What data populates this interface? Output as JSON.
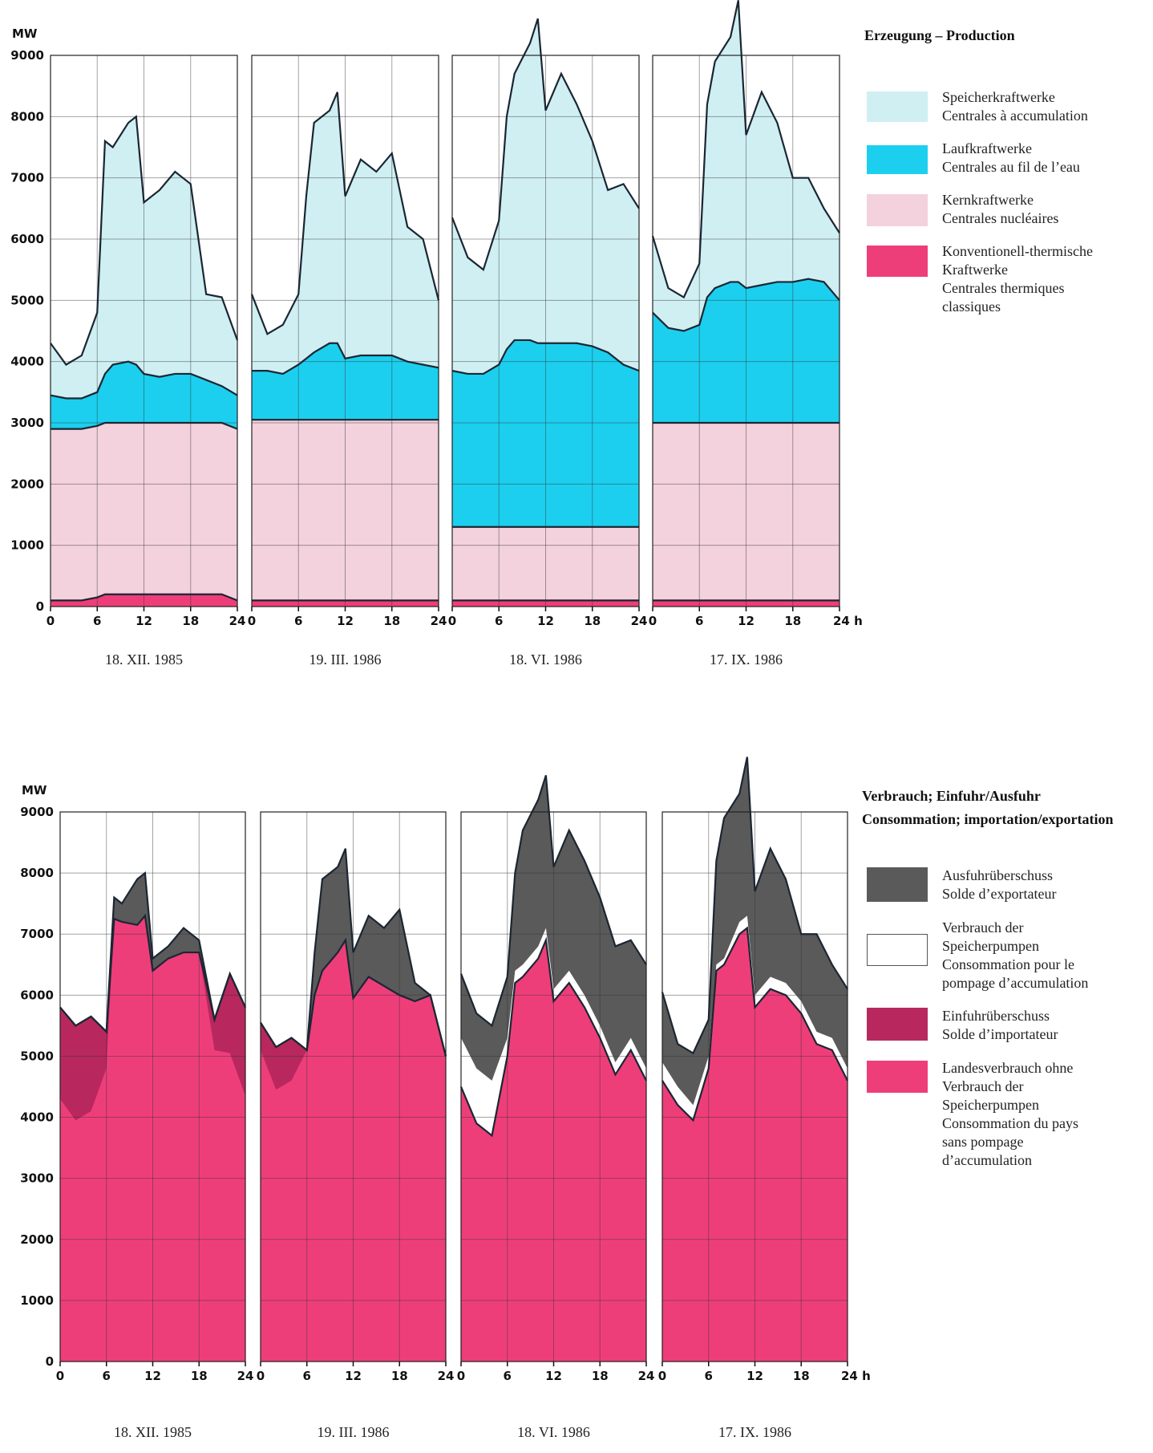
{
  "chart_data": [
    {
      "type": "stacked-area",
      "title": "Erzeugung – Production",
      "y_label": "MW",
      "ylim": [
        0,
        9000
      ],
      "yticks": [
        0,
        1000,
        2000,
        3000,
        4000,
        5000,
        6000,
        7000,
        8000,
        9000
      ],
      "xlim": [
        0,
        24
      ],
      "x": [
        0,
        2,
        4,
        6,
        7,
        8,
        10,
        11,
        12,
        14,
        16,
        18,
        20,
        22,
        24
      ],
      "xticks": [
        [
          0,
          6,
          12,
          18,
          24
        ],
        [
          0,
          6,
          12,
          18,
          24
        ],
        [
          0,
          6,
          12,
          18,
          24
        ],
        [
          0,
          6,
          12,
          18,
          {
            "value": 24,
            "label": "24 h"
          }
        ]
      ],
      "panels": [
        "18. XII. 1985",
        "19. III. 1986",
        "18. VI. 1986",
        "17. IX. 1986"
      ],
      "grid": true,
      "series": [
        {
          "name": "Speicherkraftwerke\nCentrales à accumulation",
          "color": "#cfeff3",
          "values": [
            [
              850,
              550,
              700,
              1300,
              3800,
              3550,
              3900,
              4050,
              2800,
              3050,
              3300,
              3100,
              1400,
              1450,
              900
            ],
            [
              1250,
              600,
              800,
              1150,
              2650,
              3750,
              3800,
              4100,
              2650,
              3200,
              3000,
              3300,
              2200,
              2050,
              1100
            ],
            [
              2500,
              1900,
              1700,
              2350,
              3800,
              4350,
              4850,
              5300,
              3800,
              4400,
              3900,
              3350,
              2650,
              2950,
              2650
            ],
            [
              1250,
              650,
              550,
              1000,
              3150,
              3700,
              4000,
              4600,
              2500,
              3150,
              2600,
              1700,
              1650,
              1200,
              1100
            ]
          ]
        },
        {
          "name": "Laufkraftwerke\nCentrales au fil de l’eau",
          "color": "#1ccfee",
          "values": [
            [
              550,
              500,
              500,
              550,
              800,
              950,
              1000,
              950,
              800,
              750,
              800,
              800,
              700,
              600,
              550
            ],
            [
              800,
              800,
              750,
              900,
              1000,
              1100,
              1250,
              1250,
              1000,
              1050,
              1050,
              1050,
              950,
              900,
              850
            ],
            [
              2550,
              2500,
              2500,
              2650,
              2900,
              3050,
              3050,
              3000,
              3000,
              3000,
              3000,
              2950,
              2850,
              2650,
              2550
            ],
            [
              1800,
              1550,
              1500,
              1600,
              2050,
              2200,
              2300,
              2300,
              2200,
              2250,
              2300,
              2300,
              2350,
              2300,
              2000
            ]
          ]
        },
        {
          "name": "Kernkraftwerke\nCentrales nucléaires",
          "color": "#f3d1dd",
          "values": [
            [
              2800,
              2800,
              2800,
              2800,
              2800,
              2800,
              2800,
              2800,
              2800,
              2800,
              2800,
              2800,
              2800,
              2800,
              2800
            ],
            [
              2950,
              2950,
              2950,
              2950,
              2950,
              2950,
              2950,
              2950,
              2950,
              2950,
              2950,
              2950,
              2950,
              2950,
              2950
            ],
            [
              1200,
              1200,
              1200,
              1200,
              1200,
              1200,
              1200,
              1200,
              1200,
              1200,
              1200,
              1200,
              1200,
              1200,
              1200
            ],
            [
              2900,
              2900,
              2900,
              2900,
              2900,
              2900,
              2900,
              2900,
              2900,
              2900,
              2900,
              2900,
              2900,
              2900,
              2900
            ]
          ]
        },
        {
          "name": "Konventionell-thermische\nKraftwerke\nCentrales thermiques\nclassiques",
          "color": "#ee3e7a",
          "values": [
            [
              100,
              100,
              100,
              150,
              200,
              200,
              200,
              200,
              200,
              200,
              200,
              200,
              200,
              200,
              100
            ],
            [
              100,
              100,
              100,
              100,
              100,
              100,
              100,
              100,
              100,
              100,
              100,
              100,
              100,
              100,
              100
            ],
            [
              100,
              100,
              100,
              100,
              100,
              100,
              100,
              100,
              100,
              100,
              100,
              100,
              100,
              100,
              100
            ],
            [
              100,
              100,
              100,
              100,
              100,
              100,
              100,
              100,
              100,
              100,
              100,
              100,
              100,
              100,
              100
            ]
          ]
        }
      ]
    },
    {
      "type": "balance-area",
      "title": "Verbrauch; Einfuhr/Ausfuhr",
      "subtitle": "Consommation; importation/exportation",
      "y_label": "MW",
      "ylim": [
        0,
        9000
      ],
      "yticks": [
        0,
        1000,
        2000,
        3000,
        4000,
        5000,
        6000,
        7000,
        8000,
        9000
      ],
      "xlim": [
        0,
        24
      ],
      "x": [
        0,
        2,
        4,
        6,
        7,
        8,
        10,
        11,
        12,
        14,
        16,
        18,
        20,
        22,
        24
      ],
      "xticks": [
        [
          0,
          6,
          12,
          18,
          24
        ],
        [
          0,
          6,
          12,
          18,
          24
        ],
        [
          0,
          6,
          12,
          18,
          24
        ],
        [
          0,
          6,
          12,
          18,
          {
            "value": 24,
            "label": "24 h"
          }
        ]
      ],
      "panels": [
        "18. XII. 1985",
        "19. III. 1986",
        "18. VI. 1986",
        "17. IX. 1986"
      ],
      "grid": true,
      "series": [
        {
          "name": "Ausfuhrüberschuss\nSolde d’exportateur",
          "color": "#5a5a5a",
          "values": [
            [
              0,
              0,
              0,
              0,
              350,
              300,
              750,
              700,
              200,
              200,
              400,
              200,
              0,
              0,
              0
            ],
            [
              0,
              0,
              0,
              0,
              700,
              1500,
              1400,
              1500,
              750,
              1000,
              950,
              1400,
              300,
              0,
              0
            ],
            [
              1050,
              900,
              900,
              1000,
              1600,
              2200,
              2400,
              2500,
              2000,
              2300,
              2200,
              2100,
              1900,
              1600,
              1700
            ],
            [
              1150,
              700,
              850,
              600,
              1700,
              2300,
              2100,
              2600,
              1700,
              2100,
              1700,
              1100,
              1600,
              1200,
              1300
            ]
          ]
        },
        {
          "name": "Verbrauch der\nSpeicherpumpen\nConsommation pour le\npompage d’accumulation",
          "color": "#ffffff",
          "values": [
            [
              0,
              0,
              0,
              0,
              0,
              0,
              0,
              0,
              0,
              0,
              0,
              0,
              0,
              0,
              0
            ],
            [
              0,
              0,
              0,
              0,
              0,
              0,
              0,
              0,
              0,
              0,
              0,
              0,
              0,
              0,
              0
            ],
            [
              800,
              900,
              900,
              300,
              200,
              200,
              200,
              200,
              200,
              200,
              200,
              200,
              200,
              200,
              200
            ],
            [
              300,
              300,
              250,
              200,
              100,
              100,
              200,
              200,
              200,
              200,
              200,
              200,
              200,
              200,
              200
            ]
          ]
        },
        {
          "name": "Einfuhrüberschuss\nSolde d’importateur",
          "color": "#b8285e",
          "values": [
            [
              1500,
              1550,
              1550,
              600,
              0,
              0,
              0,
              0,
              0,
              0,
              0,
              0,
              500,
              1300,
              1450
            ],
            [
              450,
              700,
              700,
              0,
              0,
              0,
              0,
              0,
              0,
              0,
              0,
              0,
              0,
              0,
              0
            ],
            [
              0,
              0,
              0,
              0,
              0,
              0,
              0,
              0,
              0,
              0,
              0,
              0,
              0,
              0,
              0
            ],
            [
              0,
              0,
              0,
              0,
              0,
              0,
              0,
              0,
              0,
              0,
              0,
              0,
              0,
              0,
              0
            ]
          ]
        },
        {
          "name": "Landesverbrauch ohne\nVerbrauch der\nSpeicherpumpen\nConsommation du pays\nsans pompage\nd’accumulation",
          "color": "#ee3e7a",
          "values": [
            [
              5800,
              5500,
              5650,
              5400,
              7250,
              7200,
              7150,
              7300,
              6400,
              6600,
              6700,
              6700,
              5600,
              6350,
              5800
            ],
            [
              5550,
              5150,
              5300,
              5100,
              6000,
              6400,
              6700,
              6900,
              5950,
              6300,
              6150,
              6000,
              5900,
              6000,
              5000
            ],
            [
              4500,
              3900,
              3700,
              5000,
              6200,
              6300,
              6600,
              6900,
              5900,
              6200,
              5800,
              5300,
              4700,
              5100,
              4600
            ],
            [
              4600,
              4200,
              3950,
              4800,
              6400,
              6500,
              7000,
              7100,
              5800,
              6100,
              6000,
              5700,
              5200,
              5100,
              4600
            ]
          ]
        }
      ]
    }
  ]
}
